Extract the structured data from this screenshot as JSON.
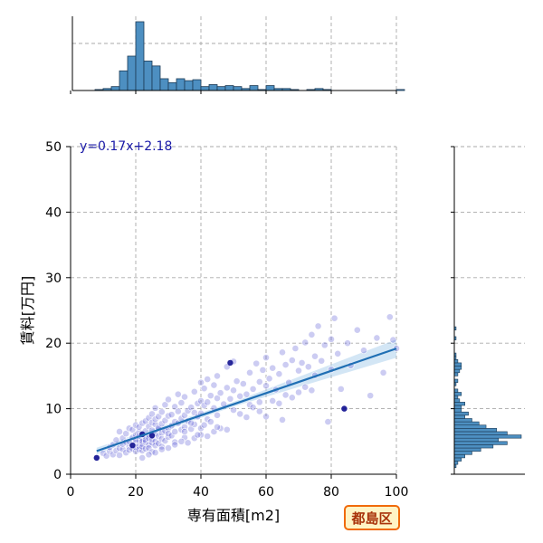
{
  "chart_data": {
    "type": "scatter",
    "title": "",
    "xlabel": "専有面積[m2]",
    "ylabel": "賃料[万円]",
    "xlim": [
      0,
      100
    ],
    "ylim": [
      0,
      50
    ],
    "xticks": [
      "0",
      "20",
      "40",
      "60",
      "80",
      "100"
    ],
    "yticks": [
      "0",
      "10",
      "20",
      "30",
      "40",
      "50"
    ],
    "grid": true,
    "regression": {
      "equation": "y=0.17x+2.18",
      "slope": 0.17,
      "intercept": 2.18,
      "x_range": [
        8,
        100
      ]
    },
    "area_histogram": {
      "bin_width": 2.5,
      "start": 7.5,
      "counts": [
        1,
        2,
        4,
        20,
        35,
        70,
        30,
        25,
        12,
        8,
        12,
        10,
        11,
        4,
        6,
        4,
        5,
        4,
        2,
        5,
        1,
        5,
        2,
        2,
        1,
        0,
        1,
        2,
        1,
        0,
        0,
        0,
        0,
        0,
        0,
        0,
        0,
        1
      ]
    },
    "rent_histogram": {
      "bin_width": 0.5,
      "start": 1.0,
      "counts": [
        1,
        2,
        4,
        6,
        10,
        15,
        22,
        30,
        25,
        38,
        30,
        24,
        18,
        14,
        10,
        6,
        8,
        4,
        4,
        6,
        3,
        2,
        4,
        2,
        0,
        1,
        2,
        0,
        2,
        3,
        4,
        4,
        2,
        1,
        1,
        0,
        0,
        0,
        0,
        1,
        0,
        0,
        1
      ]
    },
    "points": [
      [
        8,
        2.5
      ],
      [
        10,
        3.2
      ],
      [
        11,
        2.8
      ],
      [
        12,
        3.5
      ],
      [
        12,
        4.1
      ],
      [
        13,
        3.0
      ],
      [
        13,
        4.5
      ],
      [
        14,
        3.6
      ],
      [
        14,
        5.2
      ],
      [
        15,
        4.0
      ],
      [
        15,
        2.9
      ],
      [
        15,
        6.5
      ],
      [
        16,
        3.8
      ],
      [
        16,
        4.6
      ],
      [
        16,
        5.5
      ],
      [
        17,
        3.3
      ],
      [
        17,
        4.9
      ],
      [
        17,
        6.2
      ],
      [
        18,
        4.2
      ],
      [
        18,
        5.0
      ],
      [
        18,
        3.7
      ],
      [
        18,
        7.0
      ],
      [
        19,
        4.4
      ],
      [
        19,
        5.6
      ],
      [
        19,
        3.9
      ],
      [
        19,
        6.8
      ],
      [
        20,
        4.8
      ],
      [
        20,
        5.3
      ],
      [
        20,
        3.5
      ],
      [
        20,
        6.0
      ],
      [
        20,
        7.5
      ],
      [
        20,
        4.1
      ],
      [
        21,
        5.1
      ],
      [
        21,
        4.3
      ],
      [
        21,
        6.4
      ],
      [
        21,
        3.8
      ],
      [
        21,
        5.8
      ],
      [
        21,
        7.2
      ],
      [
        22,
        4.6
      ],
      [
        22,
        5.4
      ],
      [
        22,
        6.1
      ],
      [
        22,
        3.6
      ],
      [
        22,
        7.8
      ],
      [
        22,
        5.0
      ],
      [
        22,
        4.2
      ],
      [
        23,
        5.7
      ],
      [
        23,
        4.9
      ],
      [
        23,
        6.6
      ],
      [
        23,
        3.9
      ],
      [
        23,
        8.1
      ],
      [
        23,
        5.2
      ],
      [
        24,
        6.0
      ],
      [
        24,
        4.5
      ],
      [
        24,
        7.3
      ],
      [
        24,
        5.5
      ],
      [
        24,
        8.6
      ],
      [
        24,
        4.0
      ],
      [
        25,
        5.9
      ],
      [
        25,
        6.7
      ],
      [
        25,
        4.8
      ],
      [
        25,
        7.9
      ],
      [
        25,
        5.3
      ],
      [
        25,
        9.2
      ],
      [
        25,
        3.4
      ],
      [
        26,
        6.2
      ],
      [
        26,
        5.0
      ],
      [
        26,
        7.6
      ],
      [
        26,
        8.4
      ],
      [
        26,
        4.4
      ],
      [
        26,
        10.1
      ],
      [
        27,
        5.8
      ],
      [
        27,
        6.9
      ],
      [
        27,
        4.7
      ],
      [
        27,
        8.8
      ],
      [
        27,
        7.1
      ],
      [
        28,
        6.3
      ],
      [
        28,
        5.4
      ],
      [
        28,
        9.5
      ],
      [
        28,
        7.7
      ],
      [
        28,
        4.2
      ],
      [
        29,
        6.6
      ],
      [
        29,
        8.2
      ],
      [
        29,
        5.1
      ],
      [
        29,
        10.6
      ],
      [
        30,
        7.0
      ],
      [
        30,
        5.7
      ],
      [
        30,
        8.9
      ],
      [
        30,
        6.2
      ],
      [
        30,
        11.4
      ],
      [
        31,
        7.4
      ],
      [
        31,
        9.1
      ],
      [
        31,
        5.9
      ],
      [
        32,
        8.0
      ],
      [
        32,
        6.5
      ],
      [
        32,
        10.3
      ],
      [
        32,
        4.9
      ],
      [
        33,
        7.8
      ],
      [
        33,
        9.6
      ],
      [
        33,
        12.2
      ],
      [
        34,
        8.5
      ],
      [
        34,
        6.8
      ],
      [
        34,
        10.9
      ],
      [
        35,
        9.0
      ],
      [
        35,
        7.2
      ],
      [
        35,
        11.8
      ],
      [
        35,
        5.6
      ],
      [
        36,
        9.7
      ],
      [
        36,
        8.1
      ],
      [
        37,
        10.2
      ],
      [
        37,
        6.9
      ],
      [
        38,
        9.4
      ],
      [
        38,
        12.6
      ],
      [
        38,
        7.6
      ],
      [
        39,
        10.8
      ],
      [
        39,
        8.8
      ],
      [
        40,
        11.2
      ],
      [
        40,
        9.3
      ],
      [
        40,
        14.0
      ],
      [
        40,
        7.0
      ],
      [
        41,
        10.5
      ],
      [
        41,
        13.1
      ],
      [
        42,
        11.0
      ],
      [
        42,
        8.4
      ],
      [
        42,
        14.5
      ],
      [
        43,
        12.0
      ],
      [
        44,
        10.1
      ],
      [
        44,
        13.6
      ],
      [
        45,
        11.6
      ],
      [
        45,
        9.0
      ],
      [
        45,
        15.0
      ],
      [
        46,
        12.4
      ],
      [
        47,
        10.7
      ],
      [
        48,
        13.2
      ],
      [
        48,
        16.4
      ],
      [
        49,
        11.5
      ],
      [
        50,
        12.8
      ],
      [
        50,
        17.2
      ],
      [
        50,
        9.8
      ],
      [
        51,
        14.2
      ],
      [
        52,
        11.9
      ],
      [
        53,
        13.8
      ],
      [
        54,
        12.2
      ],
      [
        55,
        15.5
      ],
      [
        55,
        10.6
      ],
      [
        56,
        13.0
      ],
      [
        57,
        16.9
      ],
      [
        58,
        14.1
      ],
      [
        58,
        11.0
      ],
      [
        59,
        15.9
      ],
      [
        60,
        13.5
      ],
      [
        60,
        17.8
      ],
      [
        60,
        8.8
      ],
      [
        61,
        14.6
      ],
      [
        62,
        16.2
      ],
      [
        63,
        12.9
      ],
      [
        64,
        15.3
      ],
      [
        65,
        18.6
      ],
      [
        65,
        8.3
      ],
      [
        66,
        16.7
      ],
      [
        67,
        14.0
      ],
      [
        68,
        17.4
      ],
      [
        69,
        19.2
      ],
      [
        70,
        15.8
      ],
      [
        70,
        12.5
      ],
      [
        71,
        17.0
      ],
      [
        72,
        20.1
      ],
      [
        73,
        16.4
      ],
      [
        74,
        21.3
      ],
      [
        75,
        18.0
      ],
      [
        75,
        15.1
      ],
      [
        76,
        22.6
      ],
      [
        77,
        17.3
      ],
      [
        78,
        19.7
      ],
      [
        79,
        8.0
      ],
      [
        80,
        20.6
      ],
      [
        80,
        16.0
      ],
      [
        81,
        23.8
      ],
      [
        82,
        18.4
      ],
      [
        83,
        13.0
      ],
      [
        84,
        10.0
      ],
      [
        85,
        20.0
      ],
      [
        86,
        16.6
      ],
      [
        88,
        22.0
      ],
      [
        90,
        18.9
      ],
      [
        92,
        12.0
      ],
      [
        94,
        20.8
      ],
      [
        96,
        15.5
      ],
      [
        98,
        24.0
      ],
      [
        99,
        20.5
      ],
      [
        100,
        19.2
      ],
      [
        22,
        2.5
      ],
      [
        24,
        3.0
      ],
      [
        26,
        3.3
      ],
      [
        28,
        3.8
      ],
      [
        30,
        4.0
      ],
      [
        32,
        4.5
      ],
      [
        34,
        5.0
      ],
      [
        36,
        4.8
      ],
      [
        38,
        5.5
      ],
      [
        40,
        6.0
      ],
      [
        42,
        5.8
      ],
      [
        44,
        6.5
      ],
      [
        46,
        7.0
      ],
      [
        48,
        6.8
      ],
      [
        35,
        6.5
      ],
      [
        37,
        7.8
      ],
      [
        39,
        6.0
      ],
      [
        41,
        7.5
      ],
      [
        43,
        8.0
      ],
      [
        45,
        7.2
      ],
      [
        52,
        9.2
      ],
      [
        54,
        8.7
      ],
      [
        56,
        10.2
      ],
      [
        58,
        9.6
      ],
      [
        62,
        11.2
      ],
      [
        64,
        10.8
      ],
      [
        66,
        12.1
      ],
      [
        68,
        11.7
      ],
      [
        72,
        13.3
      ],
      [
        74,
        12.8
      ]
    ],
    "badge": "都島区"
  }
}
